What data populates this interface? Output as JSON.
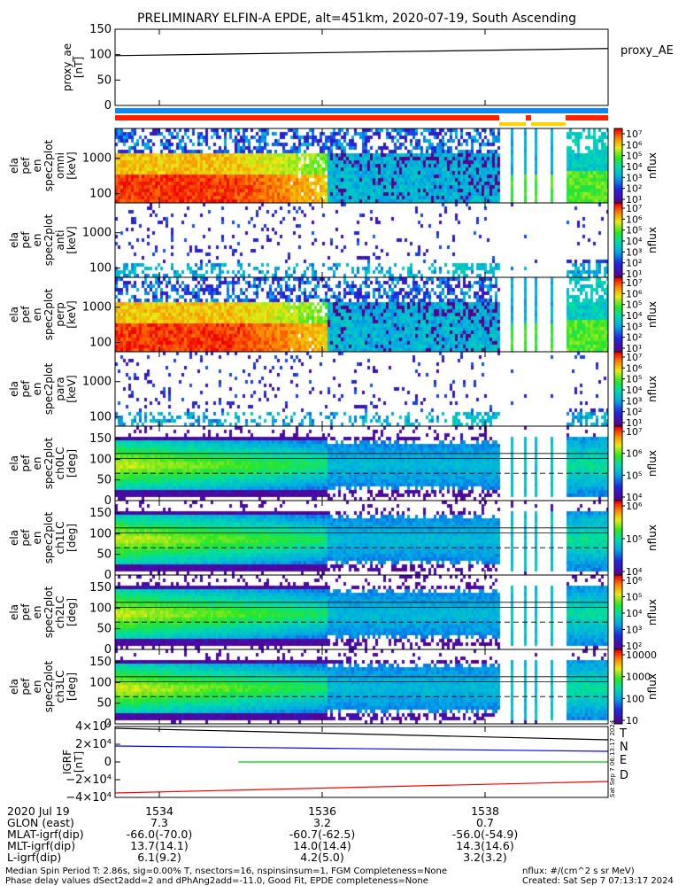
{
  "chart_data": {
    "type": "heatmap",
    "title": "PRELIMINARY ELFIN-A EPDE, alt=451km, 2020-07-19, South Ascending",
    "time_ticks": [
      "1534",
      "1536",
      "1538"
    ],
    "panels": [
      {
        "kind": "line",
        "ylabel": [
          "proxy_ae",
          "[nT]"
        ],
        "yticks": [
          "150",
          "100",
          "50",
          "0"
        ],
        "ylim": [
          0,
          150
        ],
        "legend": "proxy_AE",
        "series": [
          {
            "x": [
              0,
              1
            ],
            "y": [
              98,
              112
            ],
            "color": "#000000"
          }
        ]
      },
      {
        "kind": "spec",
        "ylabel": [
          "ela",
          "pef",
          "en",
          "spec2plot",
          "omni",
          "[keV]"
        ],
        "yticks": [
          "1000",
          "100"
        ],
        "ytick_values": [
          1000,
          100
        ],
        "log_y": true,
        "ylim": [
          55,
          7000
        ],
        "pattern": "omni",
        "colorbar": {
          "label": "nflux",
          "ticks": [
            "10⁷",
            "10⁶",
            "10⁵",
            "10⁴",
            "10³",
            "10²",
            "10¹"
          ]
        }
      },
      {
        "kind": "spec",
        "ylabel": [
          "ela",
          "pef",
          "en",
          "spec2plot",
          "anti",
          "[keV]"
        ],
        "yticks": [
          "1000",
          "100"
        ],
        "ytick_values": [
          1000,
          100
        ],
        "log_y": true,
        "ylim": [
          55,
          7000
        ],
        "pattern": "anti",
        "colorbar": {
          "label": "nflux",
          "ticks": [
            "10⁷",
            "10⁶",
            "10⁵",
            "10⁴",
            "10³",
            "10²",
            "10¹"
          ]
        }
      },
      {
        "kind": "spec",
        "ylabel": [
          "ela",
          "pef",
          "en",
          "spec2plot",
          "perp",
          "[keV]"
        ],
        "yticks": [
          "1000",
          "100"
        ],
        "ytick_values": [
          1000,
          100
        ],
        "log_y": true,
        "ylim": [
          55,
          7000
        ],
        "pattern": "omni",
        "colorbar": {
          "label": "nflux",
          "ticks": [
            "10⁷",
            "10⁶",
            "10⁵",
            "10⁴",
            "10³",
            "10²",
            "10¹"
          ]
        }
      },
      {
        "kind": "spec",
        "ylabel": [
          "ela",
          "pef",
          "en",
          "spec2plot",
          "para",
          "[keV]"
        ],
        "yticks": [
          "1000",
          "100"
        ],
        "ytick_values": [
          1000,
          100
        ],
        "log_y": true,
        "ylim": [
          55,
          7000
        ],
        "pattern": "para",
        "colorbar": {
          "label": "nflux",
          "ticks": [
            "10⁷",
            "10⁶",
            "10⁵",
            "10⁴",
            "10³",
            "10²",
            "10¹"
          ]
        }
      },
      {
        "kind": "spec",
        "ylabel": [
          "ela",
          "pef",
          "en",
          "spec2plot",
          "ch0LC",
          "[deg]"
        ],
        "yticks": [
          "150",
          "100",
          "50",
          "0"
        ],
        "ytick_values": [
          150,
          100,
          50,
          0
        ],
        "log_y": false,
        "ylim": [
          0,
          180
        ],
        "pattern": "pa",
        "colorbar": {
          "label": "nflux",
          "ticks": [
            "10⁷",
            "10⁶",
            "10⁵",
            "10⁴"
          ]
        }
      },
      {
        "kind": "spec",
        "ylabel": [
          "ela",
          "pef",
          "en",
          "spec2plot",
          "ch1LC",
          "[deg]"
        ],
        "yticks": [
          "150",
          "100",
          "50",
          "0"
        ],
        "ytick_values": [
          150,
          100,
          50,
          0
        ],
        "log_y": false,
        "ylim": [
          0,
          180
        ],
        "pattern": "pa",
        "colorbar": {
          "label": "nflux",
          "ticks": [
            "10⁶",
            "10⁵",
            "10⁴"
          ]
        }
      },
      {
        "kind": "spec",
        "ylabel": [
          "ela",
          "pef",
          "en",
          "spec2plot",
          "ch2LC",
          "[deg]"
        ],
        "yticks": [
          "150",
          "100",
          "50",
          "0"
        ],
        "ytick_values": [
          150,
          100,
          50,
          0
        ],
        "log_y": false,
        "ylim": [
          0,
          180
        ],
        "pattern": "pa",
        "colorbar": {
          "label": "nflux",
          "ticks": [
            "10⁶",
            "10⁵",
            "10⁴",
            "10³",
            "10²"
          ]
        }
      },
      {
        "kind": "spec",
        "ylabel": [
          "ela",
          "pef",
          "en",
          "spec2plot",
          "ch3LC",
          "[deg]"
        ],
        "yticks": [
          "150",
          "100",
          "50",
          "0"
        ],
        "ytick_values": [
          150,
          100,
          50,
          0
        ],
        "log_y": false,
        "ylim": [
          0,
          180
        ],
        "pattern": "pa",
        "colorbar": {
          "label": "nflux",
          "ticks": [
            "10000",
            "1000",
            "100",
            "10"
          ]
        }
      },
      {
        "kind": "line",
        "ylabel": [
          "IGRF",
          "[nT]"
        ],
        "yticks": [
          "4×10⁴",
          "2×10⁴",
          "0",
          "−2×10⁴",
          "−4×10⁴"
        ],
        "ylim": [
          -40000,
          40000
        ],
        "series": [
          {
            "name": "T",
            "color": "#000000",
            "x": [
              0,
              1
            ],
            "y": [
              38000,
              25000
            ]
          },
          {
            "name": "N",
            "color": "#0000ff",
            "x": [
              0,
              1
            ],
            "y": [
              18000,
              12000
            ]
          },
          {
            "name": "E",
            "color": "#00cc00",
            "x": [
              0.25,
              1
            ],
            "y": [
              0,
              0
            ]
          },
          {
            "name": "D",
            "color": "#ff0000",
            "x": [
              0,
              1
            ],
            "y": [
              -35000,
              -22000
            ]
          }
        ]
      }
    ]
  },
  "ephemeris": {
    "rows": [
      {
        "label": "2020 Jul 19",
        "values": [
          "1534",
          "1536",
          "1538"
        ]
      },
      {
        "label": "GLON (east)",
        "values": [
          "7.3",
          "3.2",
          "0.7"
        ]
      },
      {
        "label": "MLAT-igrf(dip)",
        "values": [
          "-66.0(-70.0)",
          "-60.7(-62.5)",
          "-56.0(-54.9)"
        ]
      },
      {
        "label": "MLT-igrf(dip)",
        "values": [
          "13.7(14.1)",
          "14.0(14.4)",
          "14.3(14.6)"
        ]
      },
      {
        "label": "L-igrf(dip)",
        "values": [
          "6.1(9.2)",
          "4.2(5.0)",
          "3.2(3.2)"
        ]
      }
    ]
  },
  "footer": {
    "line1_left": "Median Spin Period T: 2.86s, sig=0.00% T, nsectors=16, nspinsinsum=1, FGM Completeness=None",
    "line2_left": "Phase delay values dSect2add=2 and dPhAng2add=-11.0, Good Fit, EPDE completeness=None",
    "line1_right": "nflux: #/(cm^2 s sr MeV)",
    "line2_right": "Created: Sat Sep  7 07:13:17 2024",
    "side_stamp": "Sat Sep  7 06:13:17 2024"
  },
  "colors": {
    "state_bar_blue": "#1188ee",
    "state_bar_red": "#ff2200",
    "state_bar_yellow": "#ffd200"
  }
}
